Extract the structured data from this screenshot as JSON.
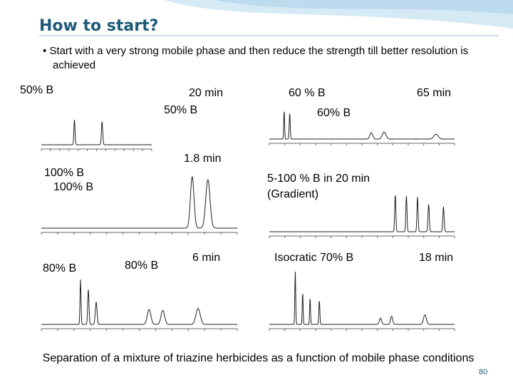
{
  "header": {
    "title": "How to start?"
  },
  "bullet": "Start with a very strong mobile phase and then reduce the strength till better resolution is achieved",
  "labels": [
    "50% B",
    "20 min",
    "50% B",
    "60 % B",
    "65 min",
    "60% B",
    "1.8 min",
    "100% B",
    "100% B",
    "5-100 % B in 20 min",
    "(Gradient)",
    "80% B",
    "80% B",
    "6 min",
    "Isocratic 70% B",
    "18 min"
  ],
  "caption": "Separation of a mixture of triazine herbicides as a function of mobile phase conditions",
  "page_number": "80"
}
